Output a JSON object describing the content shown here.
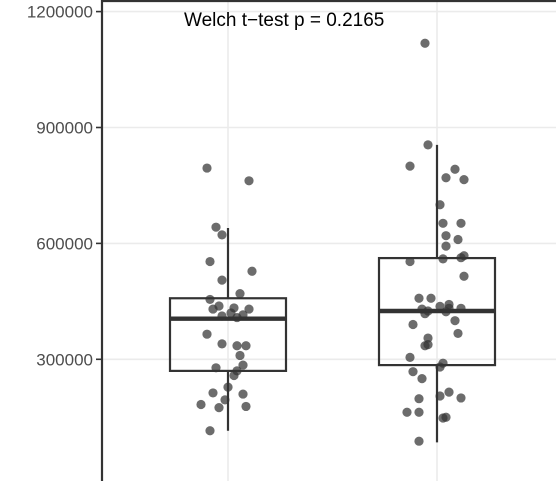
{
  "chart_data": {
    "type": "box",
    "annotation": "Welch t−test p = 0.2165",
    "ylim": [
      -15000,
      1230000
    ],
    "y_ticks": [
      {
        "value": 300000,
        "label": "300000"
      },
      {
        "value": 600000,
        "label": "600000"
      },
      {
        "value": 900000,
        "label": "900000"
      },
      {
        "value": 1200000,
        "label": "1200000"
      }
    ],
    "grid": true,
    "legend": "none",
    "colors": {
      "grid": "#ebebeb",
      "axis": "#333333",
      "box": "#333333",
      "points": "#333333"
    },
    "groups": [
      {
        "box": {
          "q1": 270000,
          "median": 405000,
          "q3": 458000,
          "whisker_low": 115000,
          "whisker_high": 640000
        },
        "points": [
          [
            -0.07,
            795000
          ],
          [
            0.07,
            762000
          ],
          [
            -0.04,
            642000
          ],
          [
            -0.02,
            622000
          ],
          [
            -0.06,
            553000
          ],
          [
            0.08,
            528000
          ],
          [
            -0.02,
            505000
          ],
          [
            0.04,
            470000
          ],
          [
            -0.06,
            455000
          ],
          [
            -0.03,
            438000
          ],
          [
            0.02,
            433000
          ],
          [
            -0.05,
            430000
          ],
          [
            0.07,
            430000
          ],
          [
            0.01,
            420000
          ],
          [
            0.05,
            415000
          ],
          [
            -0.02,
            412000
          ],
          [
            0.03,
            408000
          ],
          [
            -0.07,
            365000
          ],
          [
            -0.02,
            340000
          ],
          [
            0.03,
            335000
          ],
          [
            0.06,
            335000
          ],
          [
            0.04,
            310000
          ],
          [
            0.05,
            285000
          ],
          [
            -0.04,
            278000
          ],
          [
            0.03,
            270000
          ],
          [
            0.02,
            258000
          ],
          [
            0.0,
            228000
          ],
          [
            -0.05,
            213000
          ],
          [
            0.05,
            210000
          ],
          [
            -0.01,
            195000
          ],
          [
            -0.09,
            183000
          ],
          [
            -0.03,
            175000
          ],
          [
            0.06,
            178000
          ],
          [
            -0.06,
            115000
          ]
        ]
      },
      {
        "box": {
          "q1": 285000,
          "median": 425000,
          "q3": 562000,
          "whisker_low": 85000,
          "whisker_high": 855000
        },
        "points": [
          [
            -0.04,
            1118000
          ],
          [
            -0.03,
            855000
          ],
          [
            -0.09,
            800000
          ],
          [
            0.06,
            792000
          ],
          [
            0.03,
            770000
          ],
          [
            0.09,
            765000
          ],
          [
            0.01,
            700000
          ],
          [
            0.08,
            652000
          ],
          [
            0.02,
            652000
          ],
          [
            0.03,
            620000
          ],
          [
            0.07,
            610000
          ],
          [
            0.03,
            593000
          ],
          [
            0.09,
            568000
          ],
          [
            0.08,
            563000
          ],
          [
            0.02,
            560000
          ],
          [
            -0.09,
            553000
          ],
          [
            0.09,
            515000
          ],
          [
            -0.02,
            458000
          ],
          [
            -0.06,
            458000
          ],
          [
            0.04,
            442000
          ],
          [
            0.01,
            437000
          ],
          [
            0.04,
            432000
          ],
          [
            0.08,
            432000
          ],
          [
            -0.05,
            430000
          ],
          [
            -0.03,
            425000
          ],
          [
            0.03,
            423000
          ],
          [
            -0.04,
            418000
          ],
          [
            0.06,
            400000
          ],
          [
            -0.08,
            390000
          ],
          [
            0.07,
            367000
          ],
          [
            -0.03,
            355000
          ],
          [
            -0.03,
            338000
          ],
          [
            -0.04,
            335000
          ],
          [
            -0.09,
            305000
          ],
          [
            0.02,
            290000
          ],
          [
            0.01,
            280000
          ],
          [
            -0.08,
            268000
          ],
          [
            -0.05,
            250000
          ],
          [
            0.04,
            215000
          ],
          [
            0.01,
            205000
          ],
          [
            0.08,
            200000
          ],
          [
            -0.06,
            198000
          ],
          [
            -0.06,
            163000
          ],
          [
            -0.1,
            163000
          ],
          [
            0.03,
            150000
          ],
          [
            0.02,
            148000
          ],
          [
            -0.06,
            88000
          ]
        ]
      }
    ]
  }
}
